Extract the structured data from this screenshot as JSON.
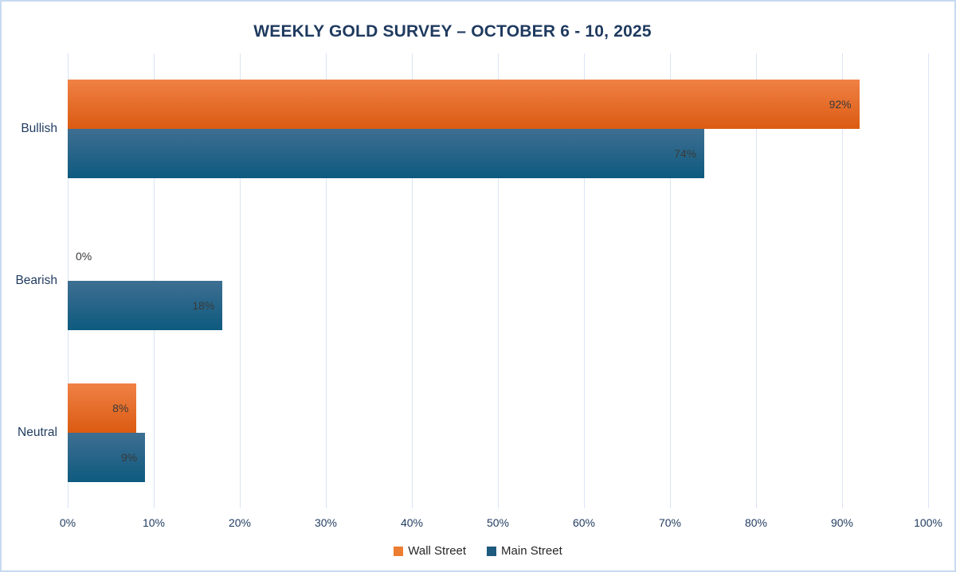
{
  "chart_data": {
    "type": "bar",
    "orientation": "horizontal",
    "title": "WEEKLY GOLD SURVEY – OCTOBER 6 - 10, 2025",
    "categories": [
      "Bullish",
      "Bearish",
      "Neutral"
    ],
    "series": [
      {
        "name": "Wall Street",
        "values": [
          92,
          0,
          8
        ],
        "bar_gradient_top": "#F08145",
        "bar_gradient_bottom": "#DB5B12",
        "legend_color": "#ED7D31"
      },
      {
        "name": "Main Street",
        "values": [
          74,
          18,
          9
        ],
        "bar_gradient_top": "#3E6F92",
        "bar_gradient_bottom": "#0E5A7F",
        "legend_color": "#1E5A7D"
      }
    ],
    "value_label_suffix": "%",
    "x_axis": {
      "min": 0,
      "max": 100,
      "tick_labels": [
        "0%",
        "10%",
        "20%",
        "30%",
        "40%",
        "50%",
        "60%",
        "70%",
        "80%",
        "90%",
        "100%"
      ]
    },
    "grid": true,
    "legend_position": "bottom",
    "colors": {
      "title_text": "#1F3A5F",
      "axis_text": "#1F3A5F",
      "data_label_text": "#3A3A3A",
      "legend_text": "#262626",
      "gridline": "#D9E5F4",
      "frame_border": "#C7DAF0",
      "background": "#FFFFFF"
    }
  }
}
